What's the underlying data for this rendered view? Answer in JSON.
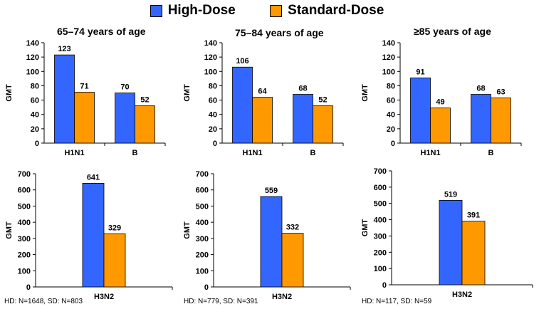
{
  "legend": {
    "items": [
      {
        "label": "High-Dose",
        "color": "#3366ff"
      },
      {
        "label": "Standard-Dose",
        "color": "#ff9900"
      }
    ]
  },
  "footnotes": [
    "HD: N=1648, SD: N=803",
    "HD: N=779, SD: N=391",
    "HD: N=117, SD: N=59"
  ],
  "chart_data": [
    {
      "type": "bar",
      "title": "65–74 years of age",
      "ylabel": "GMT",
      "ylim": [
        0,
        140
      ],
      "yticks": [
        0,
        20,
        40,
        60,
        80,
        100,
        120,
        140
      ],
      "categories": [
        "H1N1",
        "B"
      ],
      "series": [
        {
          "name": "High-Dose",
          "values": [
            123,
            70
          ]
        },
        {
          "name": "Standard-Dose",
          "values": [
            71,
            52
          ]
        }
      ]
    },
    {
      "type": "bar",
      "title": "75–84 years of age",
      "ylabel": "GMT",
      "ylim": [
        0,
        140
      ],
      "yticks": [
        0,
        20,
        40,
        60,
        80,
        100,
        120,
        140
      ],
      "categories": [
        "H1N1",
        "B"
      ],
      "series": [
        {
          "name": "High-Dose",
          "values": [
            106,
            68
          ]
        },
        {
          "name": "Standard-Dose",
          "values": [
            64,
            52
          ]
        }
      ]
    },
    {
      "type": "bar",
      "title": "≥85 years of age",
      "ylabel": "GMT",
      "ylim": [
        0,
        140
      ],
      "yticks": [
        0,
        20,
        40,
        60,
        80,
        100,
        120,
        140
      ],
      "categories": [
        "H1N1",
        "B"
      ],
      "series": [
        {
          "name": "High-Dose",
          "values": [
            91,
            68
          ]
        },
        {
          "name": "Standard-Dose",
          "values": [
            49,
            63
          ]
        }
      ]
    },
    {
      "type": "bar",
      "title": "",
      "ylabel": "GMT",
      "ylim": [
        0,
        700
      ],
      "yticks": [
        0,
        100,
        200,
        300,
        400,
        500,
        600,
        700
      ],
      "categories": [
        "H3N2"
      ],
      "series": [
        {
          "name": "High-Dose",
          "values": [
            641
          ]
        },
        {
          "name": "Standard-Dose",
          "values": [
            329
          ]
        }
      ]
    },
    {
      "type": "bar",
      "title": "",
      "ylabel": "GMT",
      "ylim": [
        0,
        700
      ],
      "yticks": [
        0,
        100,
        200,
        300,
        400,
        500,
        600,
        700
      ],
      "categories": [
        "H3N2"
      ],
      "series": [
        {
          "name": "High-Dose",
          "values": [
            559
          ]
        },
        {
          "name": "Standard-Dose",
          "values": [
            332
          ]
        }
      ]
    },
    {
      "type": "bar",
      "title": "",
      "ylabel": "GMT",
      "ylim": [
        0,
        700
      ],
      "yticks": [
        0,
        100,
        200,
        300,
        400,
        500,
        600,
        700
      ],
      "categories": [
        "H3N2"
      ],
      "series": [
        {
          "name": "High-Dose",
          "values": [
            519
          ]
        },
        {
          "name": "Standard-Dose",
          "values": [
            391
          ]
        }
      ]
    }
  ]
}
